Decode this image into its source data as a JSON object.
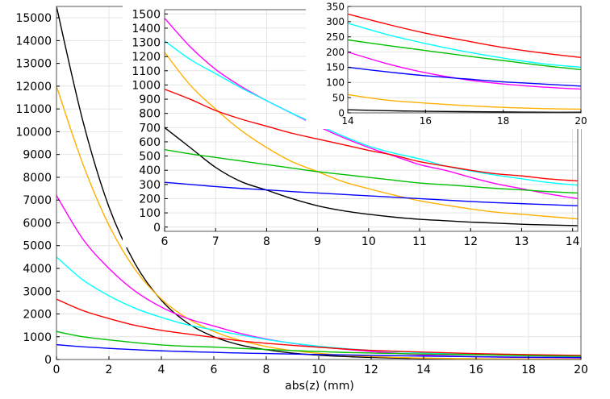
{
  "chart_data": [
    {
      "id": "main",
      "type": "line",
      "title": "",
      "xlabel": "abs(z) (mm)",
      "ylabel": "",
      "xlim": [
        0,
        20
      ],
      "ylim": [
        0,
        15500
      ],
      "xticks": [
        0,
        2,
        4,
        6,
        8,
        10,
        12,
        14,
        16,
        18,
        20
      ],
      "yticks": [
        0,
        1000,
        2000,
        3000,
        4000,
        5000,
        6000,
        7000,
        8000,
        9000,
        10000,
        11000,
        12000,
        13000,
        14000,
        15000
      ],
      "grid": true,
      "series": [
        {
          "color": "#000000",
          "x": [
            0,
            1,
            2,
            3,
            4,
            5,
            6,
            7,
            8,
            9,
            10,
            11,
            12,
            13,
            14,
            16,
            18,
            20
          ],
          "values": [
            15500,
            10500,
            6700,
            4200,
            2600,
            1600,
            1000,
            640,
            430,
            280,
            190,
            130,
            90,
            60,
            40,
            20,
            12,
            8
          ]
        },
        {
          "color": "#ffb000",
          "x": [
            0,
            1,
            2,
            3,
            4,
            5,
            6,
            7,
            8,
            9,
            10,
            11,
            12,
            13,
            14,
            16,
            18,
            20
          ],
          "values": [
            12000,
            8600,
            5900,
            3950,
            2650,
            1800,
            1230,
            840,
            570,
            390,
            270,
            185,
            128,
            90,
            62,
            32,
            18,
            10
          ]
        },
        {
          "color": "#ff00ff",
          "x": [
            0,
            1,
            2,
            3,
            4,
            5,
            6,
            7,
            8,
            9,
            10,
            11,
            12,
            13,
            14,
            16,
            18,
            20
          ],
          "values": [
            7200,
            5300,
            4000,
            3000,
            2300,
            1800,
            1470,
            1150,
            900,
            710,
            560,
            450,
            350,
            270,
            200,
            120,
            90,
            70
          ]
        },
        {
          "color": "#00ffff",
          "x": [
            0,
            1,
            2,
            3,
            4,
            5,
            6,
            7,
            8,
            9,
            10,
            11,
            12,
            13,
            14,
            16,
            18,
            20
          ],
          "values": [
            4500,
            3500,
            2800,
            2250,
            1850,
            1520,
            1300,
            1080,
            880,
            720,
            580,
            480,
            400,
            340,
            295,
            230,
            180,
            150
          ]
        },
        {
          "color": "#ff0000",
          "x": [
            0,
            1,
            2,
            3,
            4,
            5,
            6,
            7,
            8,
            9,
            10,
            11,
            12,
            13,
            14,
            16,
            18,
            20
          ],
          "values": [
            2650,
            2150,
            1800,
            1500,
            1280,
            1120,
            970,
            820,
            710,
            620,
            540,
            460,
            400,
            360,
            325,
            260,
            215,
            180
          ]
        },
        {
          "color": "#00c000",
          "x": [
            0,
            1,
            2,
            3,
            4,
            5,
            6,
            7,
            8,
            9,
            10,
            11,
            12,
            13,
            14,
            16,
            18,
            20
          ],
          "values": [
            1230,
            1000,
            860,
            740,
            640,
            580,
            545,
            490,
            440,
            390,
            350,
            310,
            285,
            262,
            240,
            205,
            170,
            140
          ]
        },
        {
          "color": "#0000ff",
          "x": [
            0,
            1,
            2,
            3,
            4,
            5,
            6,
            7,
            8,
            9,
            10,
            11,
            12,
            13,
            14,
            16,
            18,
            20
          ],
          "values": [
            650,
            560,
            490,
            430,
            380,
            345,
            315,
            285,
            262,
            240,
            220,
            200,
            180,
            165,
            150,
            120,
            100,
            85
          ]
        }
      ]
    },
    {
      "id": "inset1",
      "type": "line",
      "title": "",
      "xlabel": "",
      "ylabel": "",
      "xlim": [
        6,
        14.1
      ],
      "ylim": [
        -30,
        1530
      ],
      "xticks": [
        6,
        7,
        8,
        9,
        10,
        11,
        12,
        13,
        14
      ],
      "yticks": [
        0,
        100,
        200,
        300,
        400,
        500,
        600,
        700,
        800,
        900,
        1000,
        1100,
        1200,
        1300,
        1400,
        1500
      ],
      "grid": true,
      "series": [
        {
          "color": "#000000",
          "x": [
            6,
            6.5,
            7,
            7.5,
            8,
            8.5,
            9,
            9.5,
            10,
            10.5,
            11,
            11.5,
            12,
            12.5,
            13,
            13.5,
            14.1
          ],
          "values": [
            700,
            560,
            420,
            320,
            260,
            200,
            150,
            115,
            90,
            70,
            55,
            45,
            35,
            28,
            20,
            15,
            10
          ]
        },
        {
          "color": "#ffb000",
          "x": [
            6,
            6.5,
            7,
            7.5,
            8,
            8.5,
            9,
            9.5,
            10,
            10.5,
            11,
            11.5,
            12,
            12.5,
            13,
            13.5,
            14.1
          ],
          "values": [
            1230,
            1000,
            830,
            680,
            560,
            460,
            390,
            320,
            270,
            225,
            185,
            155,
            128,
            105,
            90,
            75,
            58
          ]
        },
        {
          "color": "#ff00ff",
          "x": [
            6,
            6.5,
            7,
            7.5,
            8,
            8.5,
            9,
            9.5,
            10,
            10.5,
            11,
            11.5,
            12,
            12.5,
            13,
            13.5,
            14.1
          ],
          "values": [
            1470,
            1270,
            1110,
            990,
            890,
            800,
            710,
            630,
            560,
            500,
            440,
            400,
            350,
            305,
            270,
            235,
            200
          ]
        },
        {
          "color": "#00ffff",
          "x": [
            6,
            6.5,
            7,
            7.5,
            8,
            8.5,
            9,
            9.5,
            10,
            10.5,
            11,
            11.5,
            12,
            12.5,
            13,
            13.5,
            14.1
          ],
          "values": [
            1310,
            1180,
            1080,
            980,
            890,
            800,
            720,
            640,
            570,
            520,
            480,
            430,
            395,
            365,
            340,
            315,
            295
          ]
        },
        {
          "color": "#ff0000",
          "x": [
            6,
            6.5,
            7,
            7.5,
            8,
            8.5,
            9,
            9.5,
            10,
            10.5,
            11,
            11.5,
            12,
            12.5,
            13,
            13.5,
            14.1
          ],
          "values": [
            970,
            900,
            820,
            760,
            710,
            660,
            620,
            580,
            540,
            505,
            460,
            430,
            400,
            375,
            360,
            340,
            325
          ]
        },
        {
          "color": "#00c000",
          "x": [
            6,
            6.5,
            7,
            7.5,
            8,
            8.5,
            9,
            9.5,
            10,
            10.5,
            11,
            11.5,
            12,
            12.5,
            13,
            13.5,
            14.1
          ],
          "values": [
            545,
            515,
            490,
            465,
            440,
            415,
            390,
            370,
            350,
            330,
            310,
            298,
            285,
            272,
            262,
            250,
            240
          ]
        },
        {
          "color": "#0000ff",
          "x": [
            6,
            6.5,
            7,
            7.5,
            8,
            8.5,
            9,
            9.5,
            10,
            10.5,
            11,
            11.5,
            12,
            12.5,
            13,
            13.5,
            14.1
          ],
          "values": [
            315,
            300,
            285,
            272,
            262,
            250,
            240,
            230,
            220,
            210,
            200,
            190,
            180,
            172,
            165,
            158,
            150
          ]
        }
      ]
    },
    {
      "id": "inset2",
      "type": "line",
      "title": "",
      "xlabel": "",
      "ylabel": "",
      "xlim": [
        14,
        20
      ],
      "ylim": [
        0,
        350
      ],
      "xticks": [
        14,
        16,
        18,
        20
      ],
      "yticks": [
        0,
        50,
        100,
        150,
        200,
        250,
        300,
        350
      ],
      "grid": true,
      "series": [
        {
          "color": "#000000",
          "x": [
            14,
            15,
            16,
            17,
            18,
            19,
            20
          ],
          "values": [
            10,
            7,
            5,
            4,
            3,
            2,
            2
          ]
        },
        {
          "color": "#ffb000",
          "x": [
            14,
            15,
            16,
            17,
            18,
            19,
            20
          ],
          "values": [
            60,
            42,
            32,
            24,
            18,
            14,
            12
          ]
        },
        {
          "color": "#ff00ff",
          "x": [
            14,
            15,
            16,
            17,
            18,
            19,
            20
          ],
          "values": [
            200,
            162,
            132,
            110,
            95,
            85,
            78
          ]
        },
        {
          "color": "#00ffff",
          "x": [
            14,
            15,
            16,
            17,
            18,
            19,
            20
          ],
          "values": [
            295,
            258,
            228,
            202,
            180,
            162,
            150
          ]
        },
        {
          "color": "#ff0000",
          "x": [
            14,
            15,
            16,
            17,
            18,
            19,
            20
          ],
          "values": [
            325,
            292,
            262,
            238,
            215,
            197,
            182
          ]
        },
        {
          "color": "#00c000",
          "x": [
            14,
            15,
            16,
            17,
            18,
            19,
            20
          ],
          "values": [
            240,
            222,
            205,
            188,
            172,
            156,
            142
          ]
        },
        {
          "color": "#0000ff",
          "x": [
            14,
            15,
            16,
            17,
            18,
            19,
            20
          ],
          "values": [
            150,
            135,
            122,
            112,
            102,
            95,
            88
          ]
        }
      ]
    }
  ]
}
